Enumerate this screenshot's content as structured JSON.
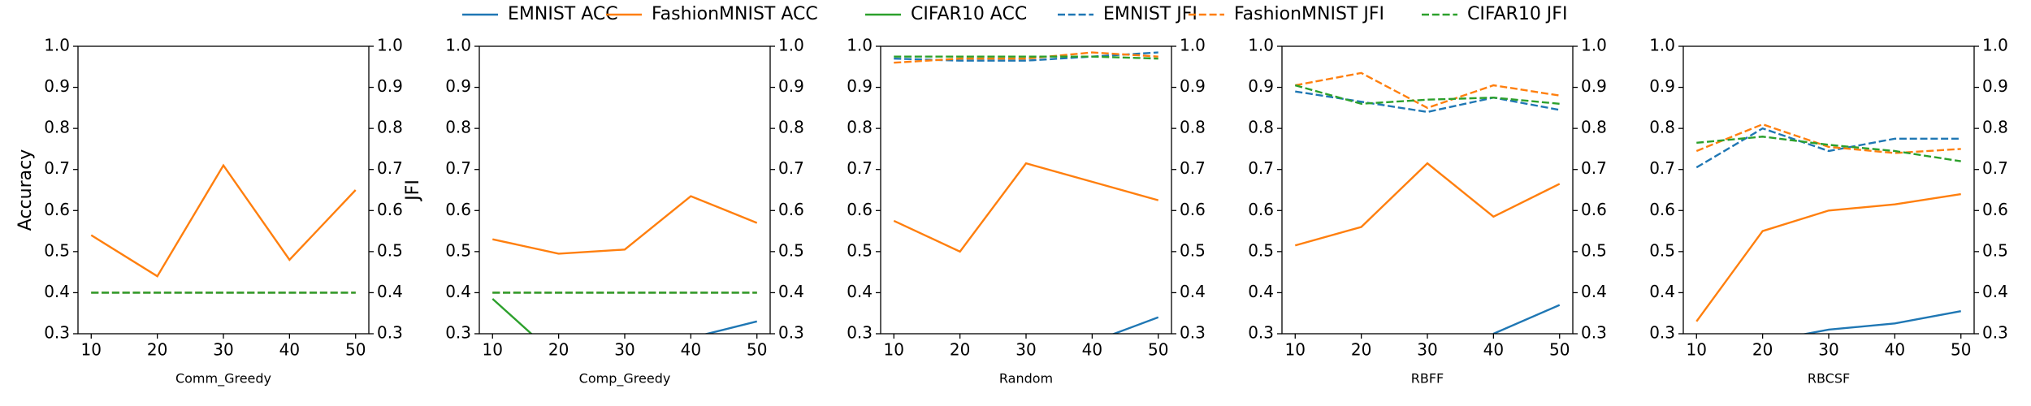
{
  "chart_data": [
    {
      "type": "line",
      "xlabel": "Comm_Greedy",
      "ylabel": "Accuracy",
      "y2label": "JFI",
      "x": [
        10,
        20,
        30,
        40,
        50
      ],
      "xlim": [
        8,
        52
      ],
      "xticks": [
        10,
        20,
        30,
        40,
        50
      ],
      "ylim": [
        0.3,
        1.0
      ],
      "yticks": [
        0.3,
        0.4,
        0.5,
        0.6,
        0.7,
        0.8,
        0.9,
        {
          "value": 1.0,
          "label": "1.0"
        }
      ],
      "y2lim": [
        0.3,
        1.0
      ],
      "y2ticks": [
        0.3,
        0.4,
        0.5,
        0.6,
        0.7,
        0.8,
        0.9,
        {
          "value": 1.0,
          "label": "1.0"
        }
      ],
      "series": [
        {
          "name": "EMNIST ACC",
          "color": "#1f77b4",
          "linestyle": "solid",
          "values": [
            null,
            null,
            null,
            null,
            null
          ]
        },
        {
          "name": "FashionMNIST ACC",
          "color": "#ff7f0e",
          "linestyle": "solid",
          "values": [
            0.54,
            0.44,
            0.71,
            0.48,
            0.65
          ]
        },
        {
          "name": "CIFAR10 ACC",
          "color": "#2ca02c",
          "linestyle": "solid",
          "values": [
            null,
            null,
            null,
            null,
            null
          ]
        },
        {
          "name": "EMNIST JFI",
          "color": "#1f77b4",
          "linestyle": "dashed",
          "axis": "y2",
          "values": [
            0.4,
            0.4,
            0.4,
            0.4,
            0.4
          ]
        },
        {
          "name": "FashionMNIST JFI",
          "color": "#ff7f0e",
          "linestyle": "dashed",
          "axis": "y2",
          "values": [
            0.4,
            0.4,
            0.4,
            0.4,
            0.4
          ]
        },
        {
          "name": "CIFAR10 JFI",
          "color": "#2ca02c",
          "linestyle": "dashed",
          "axis": "y2",
          "values": [
            0.4,
            0.4,
            0.4,
            0.4,
            0.4
          ]
        }
      ]
    },
    {
      "type": "line",
      "xlabel": "Comp_Greedy",
      "x": [
        10,
        20,
        30,
        40,
        50
      ],
      "xlim": [
        8,
        52
      ],
      "xticks": [
        10,
        20,
        30,
        40,
        50
      ],
      "ylim": [
        0.3,
        1.0
      ],
      "yticks": [
        0.3,
        0.4,
        0.5,
        0.6,
        0.7,
        0.8,
        0.9,
        {
          "value": 1.0,
          "label": "1.0"
        }
      ],
      "y2lim": [
        0.3,
        1.0
      ],
      "y2ticks": [
        0.3,
        0.4,
        0.5,
        0.6,
        0.7,
        0.8,
        0.9,
        {
          "value": 1.0,
          "label": "1.0"
        }
      ],
      "series": [
        {
          "name": "EMNIST ACC",
          "color": "#1f77b4",
          "linestyle": "solid",
          "values": [
            null,
            null,
            null,
            0.29,
            0.33
          ]
        },
        {
          "name": "FashionMNIST ACC",
          "color": "#ff7f0e",
          "linestyle": "solid",
          "values": [
            0.53,
            0.495,
            0.505,
            0.635,
            0.57
          ]
        },
        {
          "name": "CIFAR10 ACC",
          "color": "#2ca02c",
          "linestyle": "solid",
          "values": [
            0.385,
            0.24,
            null,
            null,
            null
          ]
        },
        {
          "name": "EMNIST JFI",
          "color": "#1f77b4",
          "linestyle": "dashed",
          "axis": "y2",
          "values": [
            0.4,
            0.4,
            0.4,
            0.4,
            0.4
          ]
        },
        {
          "name": "FashionMNIST JFI",
          "color": "#ff7f0e",
          "linestyle": "dashed",
          "axis": "y2",
          "values": [
            0.4,
            0.4,
            0.4,
            0.4,
            0.4
          ]
        },
        {
          "name": "CIFAR10 JFI",
          "color": "#2ca02c",
          "linestyle": "dashed",
          "axis": "y2",
          "values": [
            0.4,
            0.4,
            0.4,
            0.4,
            0.4
          ]
        }
      ]
    },
    {
      "type": "line",
      "xlabel": "Random",
      "x": [
        10,
        20,
        30,
        40,
        50
      ],
      "xlim": [
        8,
        52
      ],
      "xticks": [
        10,
        20,
        30,
        40,
        50
      ],
      "ylim": [
        0.3,
        1.0
      ],
      "yticks": [
        0.3,
        0.4,
        0.5,
        0.6,
        0.7,
        0.8,
        0.9,
        {
          "value": 1.0,
          "label": "1.0"
        }
      ],
      "y2lim": [
        0.3,
        1.0
      ],
      "y2ticks": [
        0.3,
        0.4,
        0.5,
        0.6,
        0.7,
        0.8,
        0.9,
        {
          "value": 1.0,
          "label": "1.0"
        }
      ],
      "series": [
        {
          "name": "EMNIST ACC",
          "color": "#1f77b4",
          "linestyle": "solid",
          "values": [
            null,
            null,
            null,
            0.28,
            0.34
          ]
        },
        {
          "name": "FashionMNIST ACC",
          "color": "#ff7f0e",
          "linestyle": "solid",
          "values": [
            0.575,
            0.5,
            0.715,
            0.67,
            0.625
          ]
        },
        {
          "name": "CIFAR10 ACC",
          "color": "#2ca02c",
          "linestyle": "solid",
          "values": [
            null,
            null,
            null,
            null,
            null
          ]
        },
        {
          "name": "EMNIST JFI",
          "color": "#1f77b4",
          "linestyle": "dashed",
          "axis": "y2",
          "values": [
            0.97,
            0.965,
            0.965,
            0.975,
            0.985
          ]
        },
        {
          "name": "FashionMNIST JFI",
          "color": "#ff7f0e",
          "linestyle": "dashed",
          "axis": "y2",
          "values": [
            0.96,
            0.97,
            0.97,
            0.985,
            0.975
          ]
        },
        {
          "name": "CIFAR10 JFI",
          "color": "#2ca02c",
          "linestyle": "dashed",
          "axis": "y2",
          "values": [
            0.975,
            0.975,
            0.975,
            0.975,
            0.97
          ]
        }
      ]
    },
    {
      "type": "line",
      "xlabel": "RBFF",
      "x": [
        10,
        20,
        30,
        40,
        50
      ],
      "xlim": [
        8,
        52
      ],
      "xticks": [
        10,
        20,
        30,
        40,
        50
      ],
      "ylim": [
        0.3,
        1.0
      ],
      "yticks": [
        0.3,
        0.4,
        0.5,
        0.6,
        0.7,
        0.8,
        0.9,
        {
          "value": 1.0,
          "label": "1.0"
        }
      ],
      "y2lim": [
        0.3,
        1.0
      ],
      "y2ticks": [
        0.3,
        0.4,
        0.5,
        0.6,
        0.7,
        0.8,
        0.9,
        {
          "value": 1.0,
          "label": "1.0"
        }
      ],
      "series": [
        {
          "name": "EMNIST ACC",
          "color": "#1f77b4",
          "linestyle": "solid",
          "values": [
            null,
            null,
            null,
            0.3,
            0.37
          ]
        },
        {
          "name": "FashionMNIST ACC",
          "color": "#ff7f0e",
          "linestyle": "solid",
          "values": [
            0.515,
            0.56,
            0.715,
            0.585,
            0.665
          ]
        },
        {
          "name": "CIFAR10 ACC",
          "color": "#2ca02c",
          "linestyle": "solid",
          "values": [
            null,
            null,
            null,
            null,
            null
          ]
        },
        {
          "name": "EMNIST JFI",
          "color": "#1f77b4",
          "linestyle": "dashed",
          "axis": "y2",
          "values": [
            0.89,
            0.865,
            0.84,
            0.875,
            0.845
          ]
        },
        {
          "name": "FashionMNIST JFI",
          "color": "#ff7f0e",
          "linestyle": "dashed",
          "axis": "y2",
          "values": [
            0.905,
            0.935,
            0.85,
            0.905,
            0.88
          ]
        },
        {
          "name": "CIFAR10 JFI",
          "color": "#2ca02c",
          "linestyle": "dashed",
          "axis": "y2",
          "values": [
            0.905,
            0.86,
            0.87,
            0.875,
            0.86
          ]
        }
      ]
    },
    {
      "type": "line",
      "xlabel": "RBCSF",
      "x": [
        10,
        20,
        30,
        40,
        50
      ],
      "xlim": [
        8,
        52
      ],
      "xticks": [
        10,
        20,
        30,
        40,
        50
      ],
      "ylim": [
        0.3,
        1.0
      ],
      "yticks": [
        0.3,
        0.4,
        0.5,
        0.6,
        0.7,
        0.8,
        0.9,
        {
          "value": 1.0,
          "label": "1.0"
        }
      ],
      "y2lim": [
        0.3,
        1.0
      ],
      "y2ticks": [
        0.3,
        0.4,
        0.5,
        0.6,
        0.7,
        0.8,
        0.9,
        {
          "value": 1.0,
          "label": "1.0"
        }
      ],
      "series": [
        {
          "name": "EMNIST ACC",
          "color": "#1f77b4",
          "linestyle": "solid",
          "values": [
            null,
            0.28,
            0.31,
            0.325,
            0.355
          ]
        },
        {
          "name": "FashionMNIST ACC",
          "color": "#ff7f0e",
          "linestyle": "solid",
          "values": [
            0.33,
            0.55,
            0.6,
            0.615,
            0.64
          ]
        },
        {
          "name": "CIFAR10 ACC",
          "color": "#2ca02c",
          "linestyle": "solid",
          "values": [
            null,
            null,
            null,
            null,
            null
          ]
        },
        {
          "name": "EMNIST JFI",
          "color": "#1f77b4",
          "linestyle": "dashed",
          "axis": "y2",
          "values": [
            0.705,
            0.8,
            0.745,
            0.775,
            0.775
          ]
        },
        {
          "name": "FashionMNIST JFI",
          "color": "#ff7f0e",
          "linestyle": "dashed",
          "axis": "y2",
          "values": [
            0.745,
            0.81,
            0.755,
            0.74,
            0.75
          ]
        },
        {
          "name": "CIFAR10 JFI",
          "color": "#2ca02c",
          "linestyle": "dashed",
          "axis": "y2",
          "values": [
            0.765,
            0.78,
            0.76,
            0.745,
            0.72
          ]
        }
      ]
    }
  ]
}
